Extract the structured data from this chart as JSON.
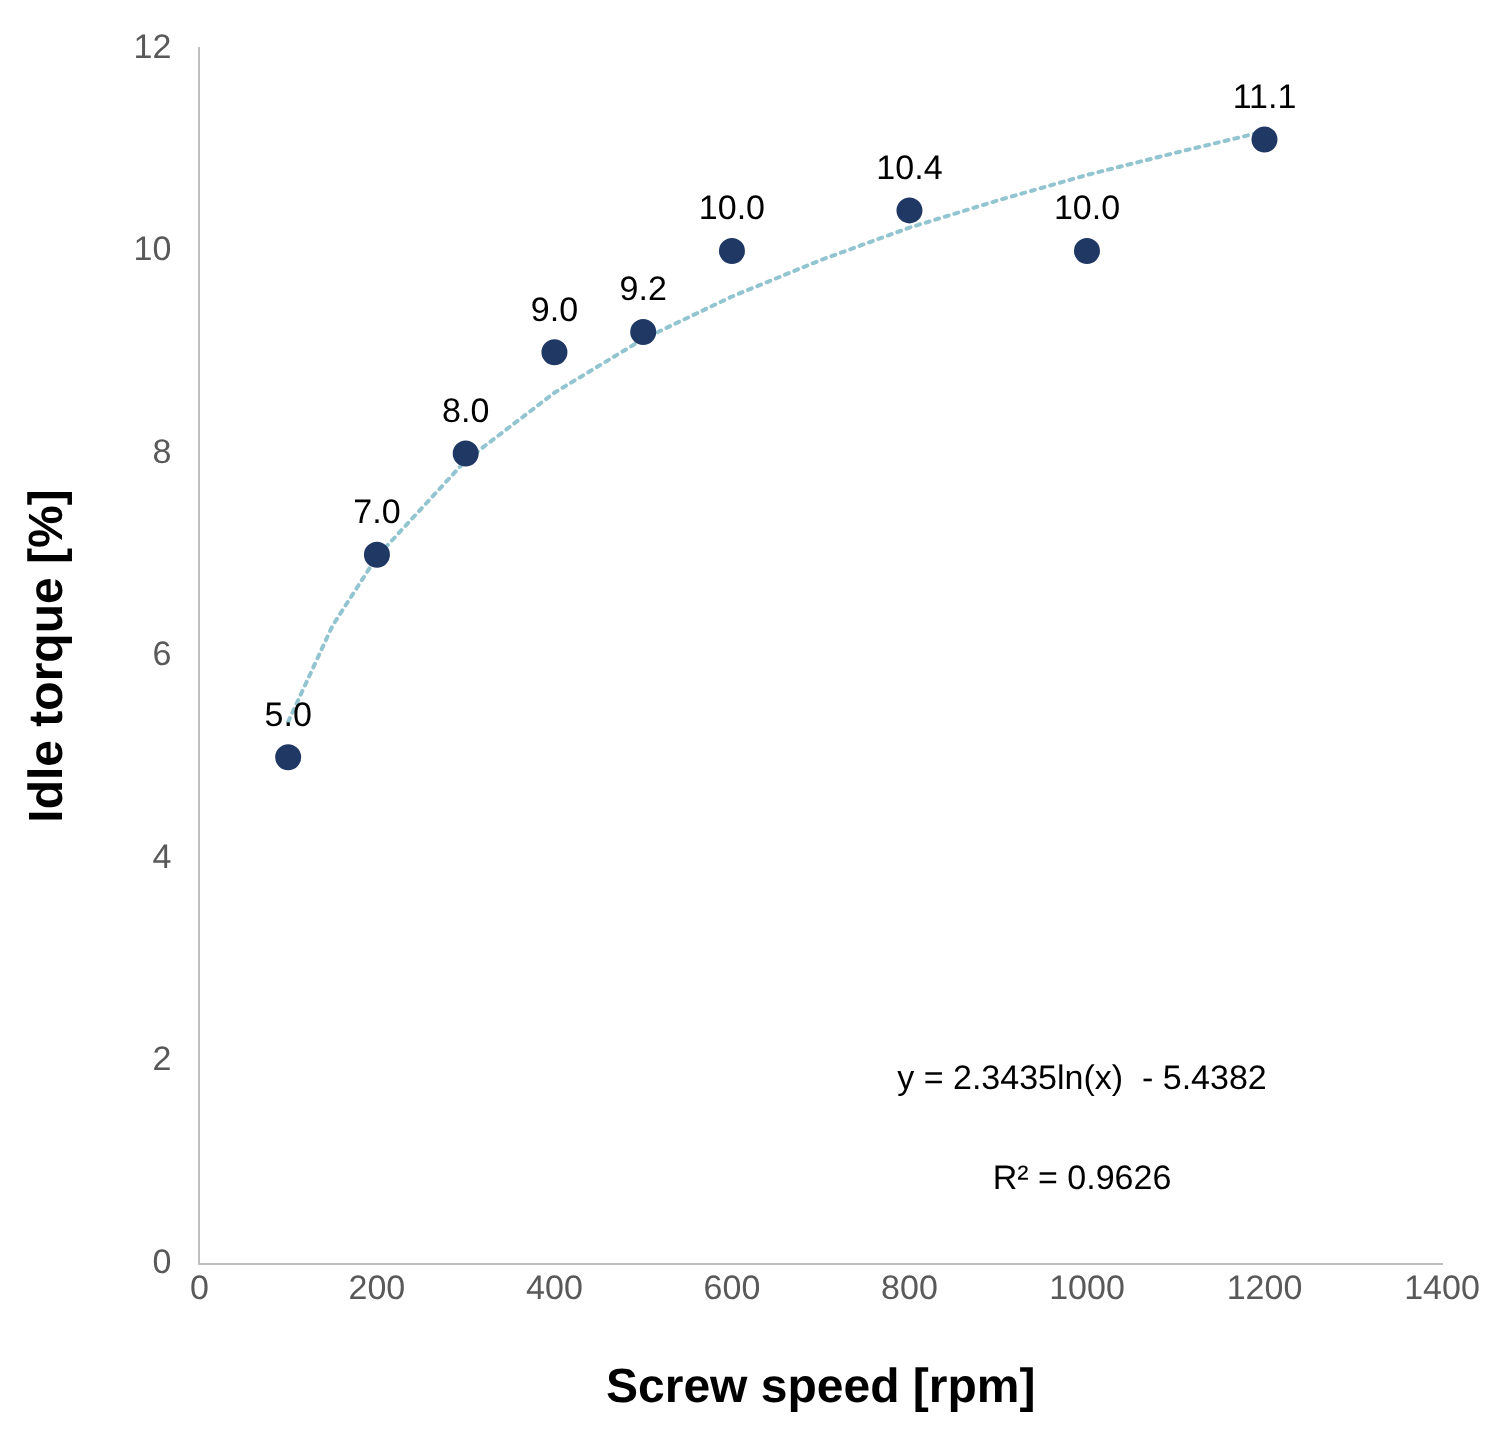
{
  "chart_data": {
    "type": "scatter",
    "xlabel": "Screw speed [rpm]",
    "ylabel": "Idle torque [%]",
    "xlim": [
      0,
      1400
    ],
    "xticks": [
      0,
      200,
      400,
      600,
      800,
      1000,
      1200,
      1400
    ],
    "ylim": [
      0,
      12
    ],
    "yticks": [
      0,
      2,
      4,
      6,
      8,
      10,
      12
    ],
    "grid": false,
    "legend": false,
    "marker": "circle",
    "series": [
      {
        "color": "#203864",
        "x": [
          100,
          200,
          300,
          400,
          500,
          600,
          800,
          1000,
          1200
        ],
        "values": [
          5.0,
          7.0,
          8.0,
          9.0,
          9.2,
          10.0,
          10.4,
          10.0,
          11.1
        ],
        "value_labels": [
          "5.0",
          "7.0",
          "8.0",
          "9.0",
          "9.2",
          "10.0",
          "10.4",
          "10.0",
          "11.1"
        ]
      },
      {
        "type": "line",
        "color": "#92c5d0",
        "line_style": "dotted",
        "marker": "none",
        "x": [
          100,
          150,
          200,
          300,
          400,
          500,
          600,
          700,
          800,
          900,
          1000,
          1100,
          1200
        ],
        "values": [
          5.35,
          6.3,
          6.98,
          7.93,
          8.6,
          9.13,
          9.55,
          9.91,
          10.23,
          10.5,
          10.75,
          10.97,
          11.18
        ]
      }
    ],
    "annotations": [
      "y = 2.3435ln(x)  - 5.4382",
      "R² = 0.9626"
    ]
  }
}
